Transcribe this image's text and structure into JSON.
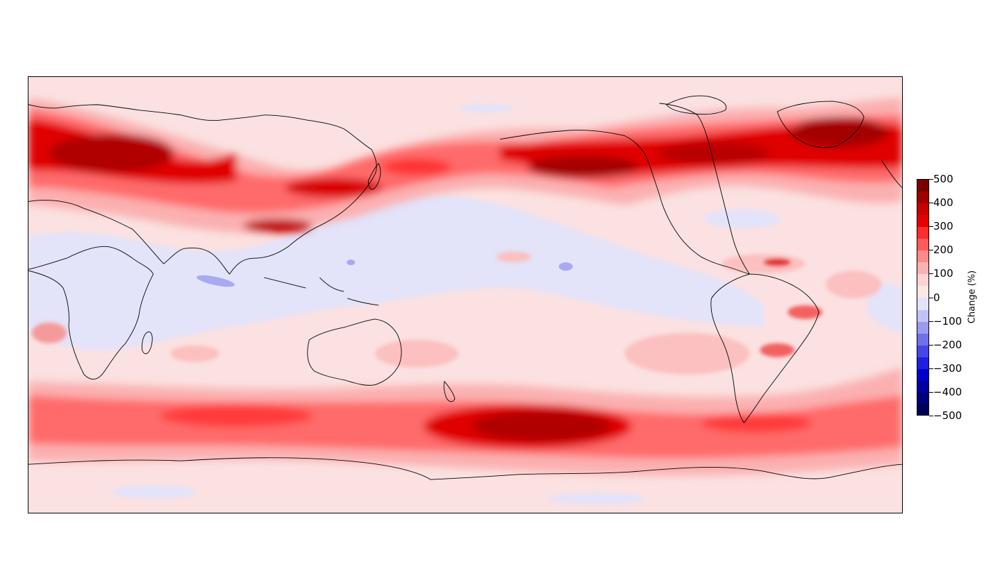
{
  "colorbar": {
    "label": "Change (%)",
    "ticks": [
      "500",
      "400",
      "300",
      "200",
      "100",
      "0",
      "−100",
      "−200",
      "−300",
      "−400",
      "−500"
    ],
    "levels_top_to_bottom": [
      "#7a0000",
      "#a00000",
      "#c80000",
      "#e60000",
      "#ff2d2d",
      "#ff5a5a",
      "#fb8a8a",
      "#fcb1b1",
      "#fcd2d2",
      "#fde6e6",
      "#e2e2fb",
      "#c2c2f6",
      "#9a9af0",
      "#7070ea",
      "#4646e8",
      "#1f1fe0",
      "#0000cc",
      "#0000a0",
      "#00007a",
      "#00005a"
    ]
  },
  "map": {
    "projection": "equirectangular, Pacific-centred",
    "background_color": "#fbe1e1",
    "coastline_color": "#000000"
  }
}
